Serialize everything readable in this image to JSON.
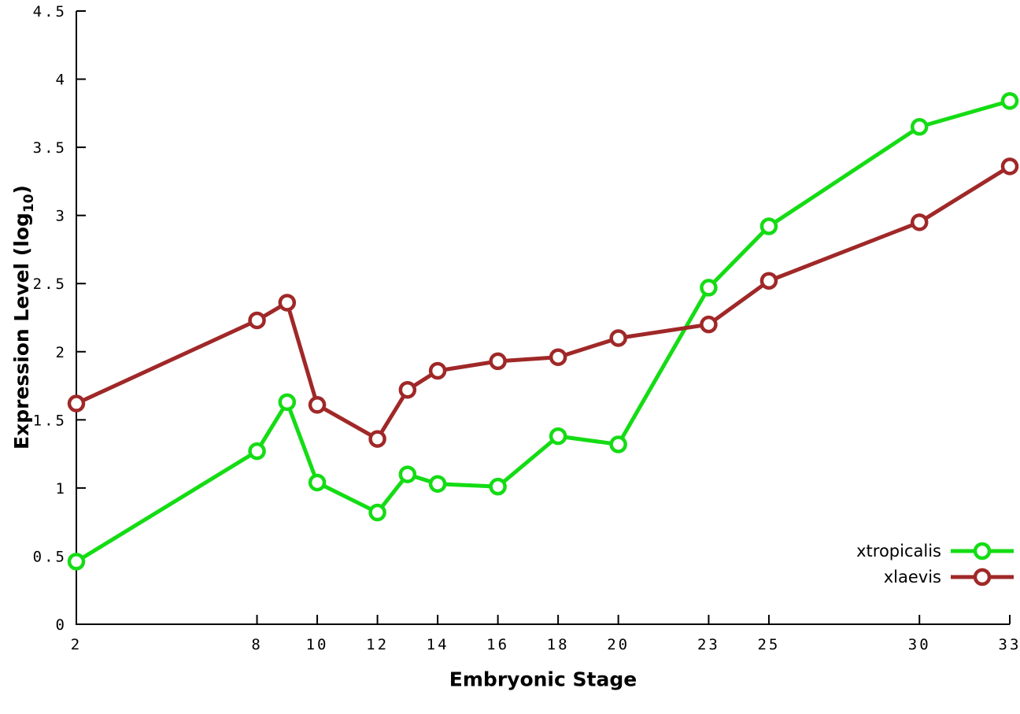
{
  "chart_data": {
    "type": "line",
    "title": "",
    "xlabel": "Embryonic Stage",
    "ylabel": {
      "prefix": "Expression Level (log",
      "sub": "10",
      "suffix": ")"
    },
    "x": [
      2,
      8,
      9,
      10,
      12,
      13,
      14,
      16,
      18,
      20,
      23,
      25,
      30,
      33
    ],
    "xticks": [
      2,
      8,
      10,
      12,
      14,
      16,
      18,
      20,
      23,
      25,
      30,
      33
    ],
    "xtick_labels": [
      "2",
      "8",
      "10",
      "12",
      "14",
      "16",
      "18",
      "20",
      "23",
      "25",
      "30",
      "33"
    ],
    "yticks": [
      0,
      0.5,
      1,
      1.5,
      2,
      2.5,
      3,
      3.5,
      4,
      4.5
    ],
    "ytick_labels": [
      "0",
      "0.5",
      "1",
      "1.5",
      "2",
      "2.5",
      "3",
      "3.5",
      "4",
      "4.5"
    ],
    "xlim": [
      2,
      33
    ],
    "ylim": [
      0,
      4.5
    ],
    "grid": false,
    "legend_position": "bottom-right",
    "marker": "open-circle",
    "background_color": "#ffffff",
    "axis_color": "#000000",
    "series": [
      {
        "name": "xtropicalis",
        "color": "#14dc14",
        "values": [
          0.46,
          1.27,
          1.63,
          1.04,
          0.82,
          1.1,
          1.03,
          1.01,
          1.38,
          1.32,
          2.47,
          2.92,
          3.65,
          3.84
        ]
      },
      {
        "name": "xlaevis",
        "color": "#a02828",
        "values": [
          1.62,
          2.23,
          2.36,
          1.61,
          1.36,
          1.72,
          1.86,
          1.93,
          1.96,
          2.1,
          2.2,
          2.52,
          2.95,
          3.36
        ]
      }
    ]
  }
}
